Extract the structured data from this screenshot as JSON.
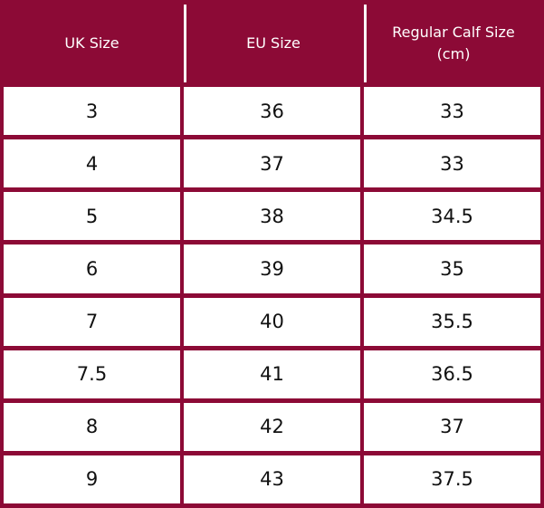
{
  "colors": {
    "brand": "#8c0a36",
    "cell_background": "#ffffff",
    "text": "#111111"
  },
  "table": {
    "headers": [
      "UK Size",
      "EU Size",
      "Regular Calf Size (cm)"
    ],
    "rows": [
      [
        "3",
        "36",
        "33"
      ],
      [
        "4",
        "37",
        "33"
      ],
      [
        "5",
        "38",
        "34.5"
      ],
      [
        "6",
        "39",
        "35"
      ],
      [
        "7",
        "40",
        "35.5"
      ],
      [
        "7.5",
        "41",
        "36.5"
      ],
      [
        "8",
        "42",
        "37"
      ],
      [
        "9",
        "43",
        "37.5"
      ]
    ]
  }
}
